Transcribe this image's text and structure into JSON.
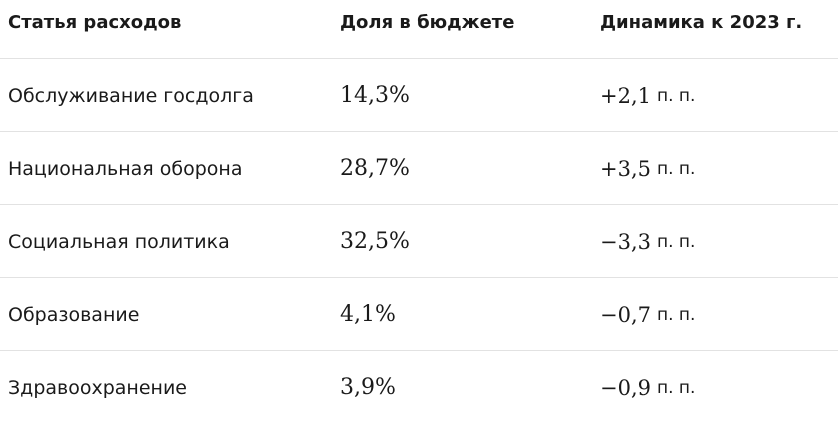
{
  "table": {
    "columns": [
      "Статья расходов",
      "Доля в бюджете",
      "Динамика к 2023 г."
    ],
    "rows": [
      [
        "Обслуживание госдолга",
        "14,3%",
        {
          "value": "+2,1",
          "unit": "п. п."
        }
      ],
      [
        "Национальная оборона",
        "28,7%",
        {
          "value": "+3,5",
          "unit": "п. п."
        }
      ],
      [
        "Социальная политика",
        "32,5%",
        {
          "value": "−3,3",
          "unit": "п. п."
        }
      ],
      [
        "Образование",
        "4,1%",
        {
          "value": "−0,7",
          "unit": "п. п."
        }
      ],
      [
        "Здравоохранение",
        "3,9%",
        {
          "value": "−0,9",
          "unit": "п. п."
        }
      ]
    ]
  }
}
